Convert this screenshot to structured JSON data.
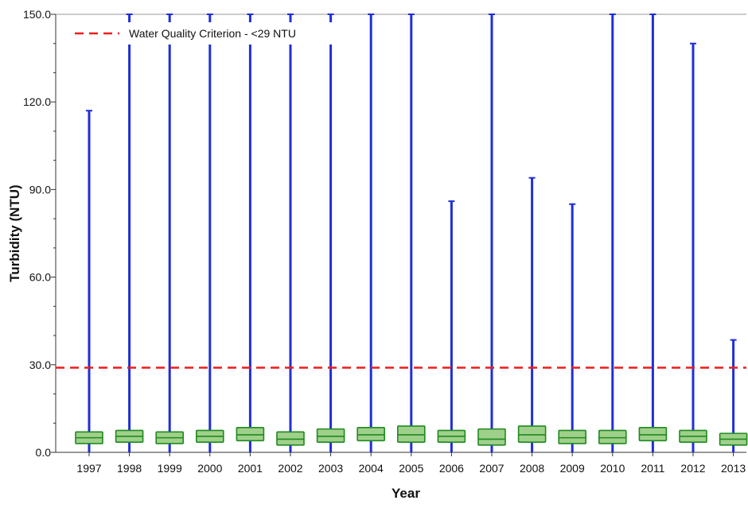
{
  "chart_data": {
    "type": "boxplot",
    "xlabel": "Year",
    "ylabel": "Turbidity (NTU)",
    "ylim": [
      0,
      150
    ],
    "yticks": [
      0,
      30,
      60,
      90,
      120,
      150
    ],
    "ytick_labels": [
      "0.0",
      "30.0",
      "60.0",
      "90.0",
      "120.0",
      "150.0"
    ],
    "categories": [
      "1997",
      "1998",
      "1999",
      "2000",
      "2001",
      "2002",
      "2003",
      "2004",
      "2005",
      "2006",
      "2007",
      "2008",
      "2009",
      "2010",
      "2011",
      "2012",
      "2013"
    ],
    "boxes": [
      {
        "min": 0,
        "q1": 3,
        "median": 5,
        "q3": 7,
        "max": 117
      },
      {
        "min": 0,
        "q1": 3.5,
        "median": 5.5,
        "q3": 7.5,
        "max": 150
      },
      {
        "min": 0,
        "q1": 3,
        "median": 5,
        "q3": 7,
        "max": 150
      },
      {
        "min": 0,
        "q1": 3.5,
        "median": 5.5,
        "q3": 7.5,
        "max": 150
      },
      {
        "min": 0,
        "q1": 4,
        "median": 6,
        "q3": 8.5,
        "max": 150
      },
      {
        "min": 0,
        "q1": 2.5,
        "median": 4.5,
        "q3": 7,
        "max": 150
      },
      {
        "min": 0,
        "q1": 3.5,
        "median": 5.5,
        "q3": 8,
        "max": 150
      },
      {
        "min": 0,
        "q1": 4,
        "median": 6,
        "q3": 8.5,
        "max": 150
      },
      {
        "min": 0,
        "q1": 3.5,
        "median": 6,
        "q3": 9,
        "max": 150
      },
      {
        "min": 0,
        "q1": 3.5,
        "median": 5.5,
        "q3": 7.5,
        "max": 86
      },
      {
        "min": 0,
        "q1": 2.5,
        "median": 4.5,
        "q3": 8,
        "max": 150
      },
      {
        "min": 0,
        "q1": 3.5,
        "median": 6,
        "q3": 9,
        "max": 94
      },
      {
        "min": 0,
        "q1": 3,
        "median": 5,
        "q3": 7.5,
        "max": 85
      },
      {
        "min": 0,
        "q1": 3,
        "median": 5,
        "q3": 7.5,
        "max": 150
      },
      {
        "min": 0,
        "q1": 4,
        "median": 6,
        "q3": 8.5,
        "max": 150
      },
      {
        "min": 0,
        "q1": 3.5,
        "median": 5.5,
        "q3": 7.5,
        "max": 140
      },
      {
        "min": 0,
        "q1": 2.5,
        "median": 4.5,
        "q3": 6.5,
        "max": 38.5
      }
    ],
    "reference_line": {
      "value": 29,
      "label": "Water Quality Criterion - <29 NTU",
      "color": "#ee1c1c",
      "style": "dashed"
    },
    "legend_position": "top-left",
    "grid": false,
    "colors": {
      "whisker": "#1f2fd8",
      "box_fill": "#9fd08a",
      "box_edge": "#1f8a1f",
      "median": "#1f8a1f"
    }
  }
}
